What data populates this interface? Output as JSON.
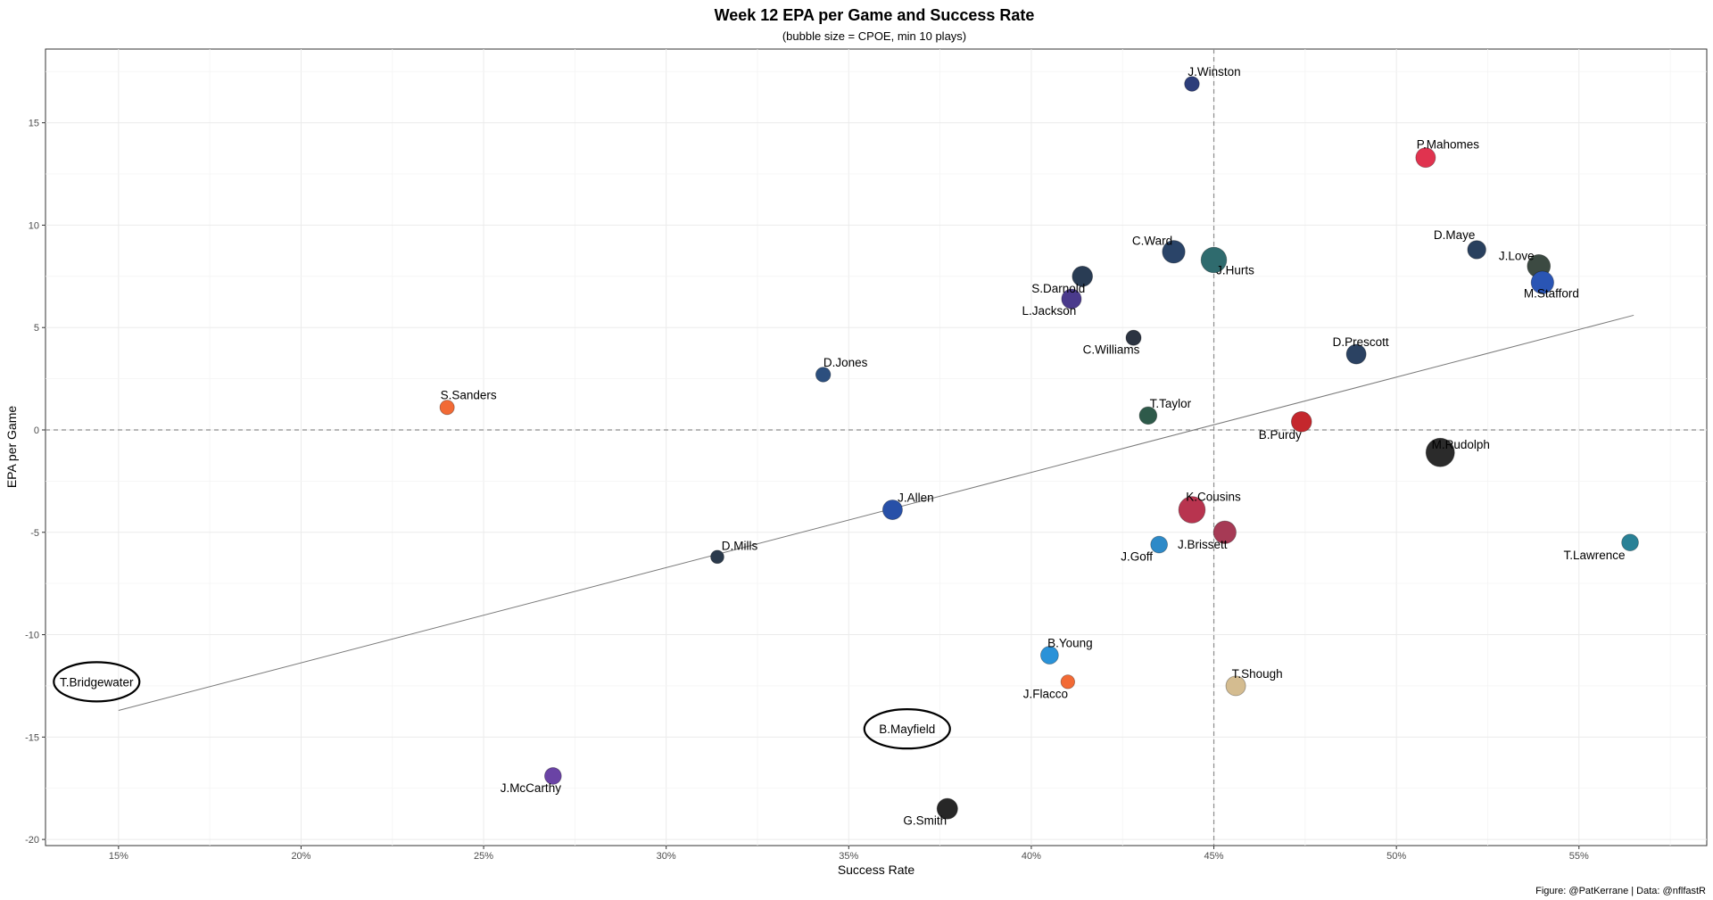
{
  "chart_data": {
    "type": "scatter",
    "title": "Week 12 EPA per Game and Success Rate",
    "subtitle": "(bubble size = CPOE, min 10 plays)",
    "xlabel": "Success Rate",
    "ylabel": "EPA per Game",
    "caption": "Figure: @PatKerrane | Data: @nflfastR",
    "xlim": [
      0.13,
      0.585
    ],
    "ylim": [
      -20.3,
      18.6
    ],
    "x_ticks": [
      {
        "value": 0.15,
        "label": "15%"
      },
      {
        "value": 0.2,
        "label": "20%"
      },
      {
        "value": 0.25,
        "label": "25%"
      },
      {
        "value": 0.3,
        "label": "30%"
      },
      {
        "value": 0.35,
        "label": "35%"
      },
      {
        "value": 0.4,
        "label": "40%"
      },
      {
        "value": 0.45,
        "label": "45%"
      },
      {
        "value": 0.5,
        "label": "50%"
      },
      {
        "value": 0.55,
        "label": "55%"
      }
    ],
    "y_ticks": [
      {
        "value": 15,
        "label": "15"
      },
      {
        "value": 10,
        "label": "10"
      },
      {
        "value": 5,
        "label": "5"
      },
      {
        "value": 0,
        "label": "0"
      },
      {
        "value": -5,
        "label": "-5"
      },
      {
        "value": -10,
        "label": "-10"
      },
      {
        "value": -15,
        "label": "-15"
      },
      {
        "value": -20,
        "label": "-20"
      }
    ],
    "grid": true,
    "reference_lines": {
      "x": 0.45,
      "y": 0
    },
    "trend_line": {
      "x": [
        0.15,
        0.565
      ],
      "y": [
        -13.7,
        5.6
      ]
    },
    "points": [
      {
        "label": "J.Winston",
        "x": 0.444,
        "y": 16.9,
        "size": 0.3,
        "color": "#2d3e7a"
      },
      {
        "label": "P.Mahomes",
        "x": 0.508,
        "y": 13.3,
        "size": 0.55,
        "color": "#e0334f"
      },
      {
        "label": "C.Ward",
        "x": 0.439,
        "y": 8.7,
        "size": 0.7,
        "color": "#2a4468"
      },
      {
        "label": "J.Hurts",
        "x": 0.45,
        "y": 8.3,
        "size": 0.85,
        "color": "#2f6b6e"
      },
      {
        "label": "D.Maye",
        "x": 0.522,
        "y": 8.8,
        "size": 0.48,
        "color": "#29405e"
      },
      {
        "label": "J.Love",
        "x": 0.539,
        "y": 8.0,
        "size": 0.72,
        "color": "#3c4a42"
      },
      {
        "label": "M.Stafford",
        "x": 0.54,
        "y": 7.2,
        "size": 0.7,
        "color": "#2a55b4"
      },
      {
        "label": "S.Darnold",
        "x": 0.414,
        "y": 7.5,
        "size": 0.58,
        "color": "#293c54"
      },
      {
        "label": "L.Jackson",
        "x": 0.411,
        "y": 6.4,
        "size": 0.55,
        "color": "#4a3a8c"
      },
      {
        "label": "C.Williams",
        "x": 0.428,
        "y": 4.5,
        "size": 0.32,
        "color": "#2c3442"
      },
      {
        "label": "D.Prescott",
        "x": 0.489,
        "y": 3.7,
        "size": 0.55,
        "color": "#2b4262"
      },
      {
        "label": "D.Jones",
        "x": 0.343,
        "y": 2.7,
        "size": 0.3,
        "color": "#2c4f7e"
      },
      {
        "label": "S.Sanders",
        "x": 0.24,
        "y": 1.1,
        "size": 0.28,
        "color": "#f26a35"
      },
      {
        "label": "T.Taylor",
        "x": 0.432,
        "y": 0.7,
        "size": 0.44,
        "color": "#2e5a4a"
      },
      {
        "label": "B.Purdy",
        "x": 0.474,
        "y": 0.4,
        "size": 0.58,
        "color": "#c4272d"
      },
      {
        "label": "M.Rudolph",
        "x": 0.512,
        "y": -1.1,
        "size": 1.0,
        "color": "#2b2b2b"
      },
      {
        "label": "K.Cousins",
        "x": 0.444,
        "y": -3.9,
        "size": 0.9,
        "color": "#b8344f"
      },
      {
        "label": "J.Allen",
        "x": 0.362,
        "y": -3.9,
        "size": 0.55,
        "color": "#2850a8"
      },
      {
        "label": "J.Brissett",
        "x": 0.453,
        "y": -5.0,
        "size": 0.7,
        "color": "#a63a55"
      },
      {
        "label": "J.Goff",
        "x": 0.435,
        "y": -5.6,
        "size": 0.4,
        "color": "#2e8ac8"
      },
      {
        "label": "T.Lawrence",
        "x": 0.564,
        "y": -5.5,
        "size": 0.4,
        "color": "#2a8196"
      },
      {
        "label": "D.Mills",
        "x": 0.314,
        "y": -6.2,
        "size": 0.22,
        "color": "#2b3a4c"
      },
      {
        "label": "B.Young",
        "x": 0.405,
        "y": -11.0,
        "size": 0.45,
        "color": "#2a92d8"
      },
      {
        "label": "J.Flacco",
        "x": 0.41,
        "y": -12.3,
        "size": 0.25,
        "color": "#f26a35"
      },
      {
        "label": "T.Shough",
        "x": 0.456,
        "y": -12.5,
        "size": 0.55,
        "color": "#d4bc90"
      },
      {
        "label": "J.McCarthy",
        "x": 0.269,
        "y": -16.9,
        "size": 0.4,
        "color": "#6a43a5"
      },
      {
        "label": "G.Smith",
        "x": 0.377,
        "y": -18.5,
        "size": 0.6,
        "color": "#272727"
      },
      {
        "label": "T.Bridgewater",
        "x": 0.144,
        "y": -12.3,
        "size": 0,
        "color": "#000000",
        "circled": true
      },
      {
        "label": "B.Mayfield",
        "x": 0.366,
        "y": -14.6,
        "size": 0,
        "color": "#000000",
        "circled": true
      }
    ]
  }
}
